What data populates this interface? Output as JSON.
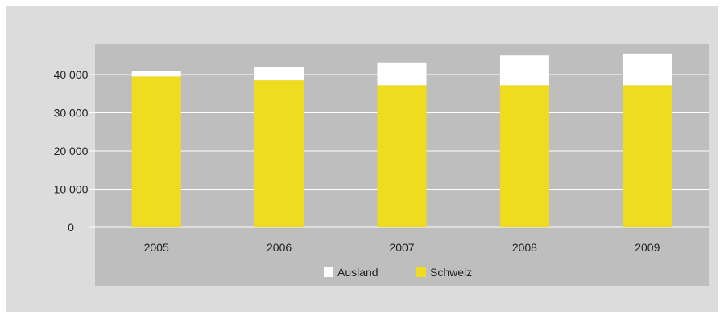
{
  "chart_data": {
    "type": "bar",
    "stacked": true,
    "categories": [
      "2005",
      "2006",
      "2007",
      "2008",
      "2009"
    ],
    "series": [
      {
        "name": "Schweiz",
        "color": "#f0dc1e",
        "values": [
          39500,
          38500,
          37200,
          37200,
          37200
        ]
      },
      {
        "name": "Ausland",
        "color": "#ffffff",
        "values": [
          1500,
          3500,
          6000,
          7800,
          8300
        ]
      }
    ],
    "ylim": [
      0,
      48000
    ],
    "yticks": [
      0,
      10000,
      20000,
      30000,
      40000
    ],
    "ytick_labels": [
      "0",
      "10 000",
      "20 000",
      "30 000",
      "40 000"
    ],
    "grid": true,
    "legend_position": "bottom",
    "legend_order": [
      "Ausland",
      "Schweiz"
    ],
    "plot_background": "#bebebe",
    "page_background": "#dcdcdc",
    "title": "",
    "xlabel": "",
    "ylabel": ""
  }
}
